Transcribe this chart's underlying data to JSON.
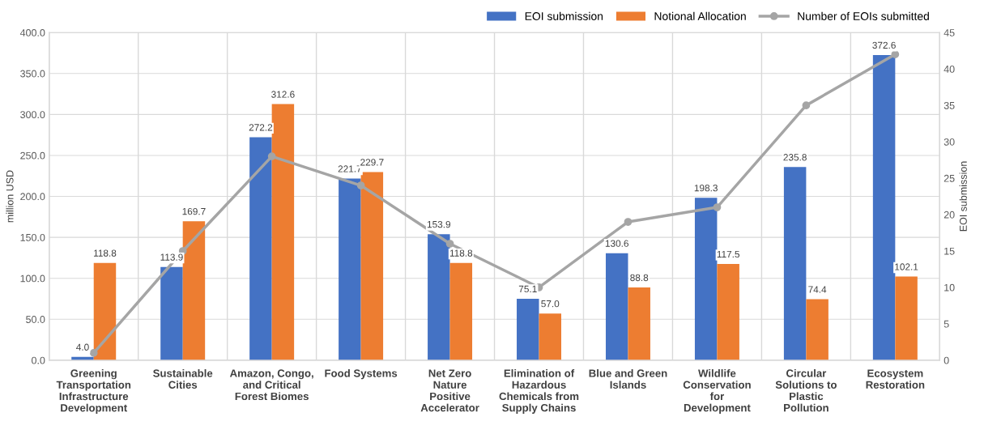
{
  "chart_data": {
    "type": "bar",
    "ylabel": "million USD",
    "y2label": "EOI submission",
    "categories": [
      "Greening Transportation Infrastructure Development",
      "Sustainable Cities",
      "Amazon, Congo, and Critical Forest Biomes",
      "Food Systems",
      "Net Zero Nature Positive Accelerator",
      "Elimination of Hazardous Chemicals from Supply Chains",
      "Blue and Green Islands",
      "Wildlife Conservation for Development",
      "Circular Solutions to Plastic Pollution",
      "Ecosystem Restoration"
    ],
    "series": [
      {
        "name": "EOI submission",
        "color": "#4472c4",
        "values": [
          4.0,
          113.9,
          272.2,
          221.7,
          153.9,
          75.1,
          130.6,
          198.3,
          235.8,
          372.6
        ],
        "value_labels": [
          "4.0",
          "113.9",
          "272.2",
          "221.7",
          "153.9",
          "75.1",
          "130.6",
          "198.3",
          "235.8",
          "372.6"
        ]
      },
      {
        "name": "Notional Allocation",
        "color": "#ed7d31",
        "values": [
          118.8,
          169.7,
          312.6,
          229.7,
          118.8,
          57.0,
          88.8,
          117.5,
          74.4,
          102.1
        ],
        "value_labels": [
          "118.8",
          "169.7",
          "312.6",
          "229.7",
          "118.8",
          "57.0",
          "88.8",
          "117.5",
          "74.4",
          "102.1"
        ]
      },
      {
        "name": "Number of EOIs submitted",
        "type": "line",
        "axis": "y2",
        "color": "#a5a5a5",
        "marker": "circle",
        "values": [
          1,
          15,
          28,
          24,
          16,
          10,
          19,
          21,
          35,
          42
        ]
      }
    ],
    "ylim": [
      0,
      400
    ],
    "yticks": [
      {
        "value": 0,
        "label": "0.0"
      },
      {
        "value": 50,
        "label": "50.0"
      },
      {
        "value": 100,
        "label": "100.0"
      },
      {
        "value": 150,
        "label": "150.0"
      },
      {
        "value": 200,
        "label": "200.0"
      },
      {
        "value": 250,
        "label": "250.0"
      },
      {
        "value": 300,
        "label": "300.0"
      },
      {
        "value": 350,
        "label": "350.0"
      },
      {
        "value": 400,
        "label": "400.0"
      }
    ],
    "y2lim": [
      0,
      45
    ],
    "y2ticks": [
      0,
      5,
      10,
      15,
      20,
      25,
      30,
      35,
      40,
      45
    ],
    "grid": true,
    "legend": "top right"
  }
}
